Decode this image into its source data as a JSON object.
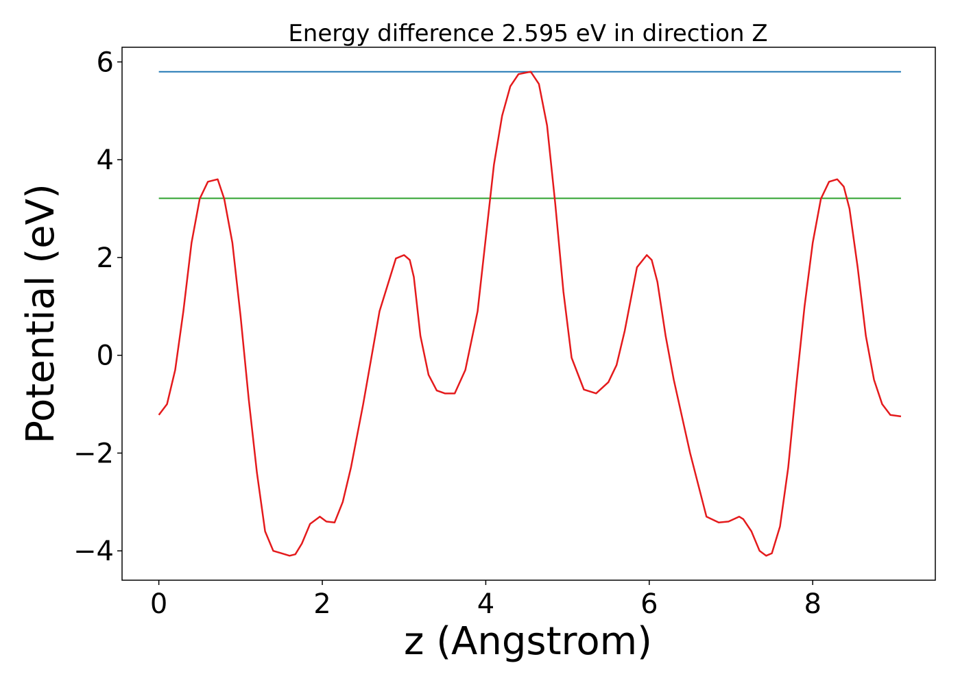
{
  "chart_data": {
    "type": "line",
    "title": "Energy difference 2.595 eV in direction Z",
    "xlabel": "z (Angstrom)",
    "ylabel": "Potential (eV)",
    "xlim": [
      -0.45,
      9.5
    ],
    "ylim": [
      -4.6,
      6.3
    ],
    "xticks": [
      0,
      2,
      4,
      6,
      8
    ],
    "yticks": [
      -4,
      -2,
      0,
      2,
      4,
      6
    ],
    "xtick_labels": [
      "0",
      "2",
      "4",
      "6",
      "8"
    ],
    "ytick_labels": [
      "−4",
      "−2",
      "0",
      "2",
      "4",
      "6"
    ],
    "grid": false,
    "legend": "none",
    "series": [
      {
        "color": "#1f77b4",
        "x": [
          0,
          9.08
        ],
        "y": [
          5.8,
          5.8
        ]
      },
      {
        "color": "#2ca02c",
        "x": [
          0,
          9.08
        ],
        "y": [
          3.21,
          3.21
        ]
      },
      {
        "color": "#e41a1c",
        "x": [
          0.0,
          0.1,
          0.2,
          0.3,
          0.4,
          0.5,
          0.6,
          0.72,
          0.8,
          0.9,
          1.0,
          1.1,
          1.2,
          1.3,
          1.4,
          1.5,
          1.6,
          1.67,
          1.75,
          1.85,
          1.97,
          2.05,
          2.15,
          2.25,
          2.35,
          2.5,
          2.7,
          2.9,
          3.0,
          3.07,
          3.12,
          3.2,
          3.3,
          3.4,
          3.5,
          3.62,
          3.75,
          3.9,
          4.0,
          4.1,
          4.2,
          4.3,
          4.4,
          4.55,
          4.65,
          4.75,
          4.85,
          4.95,
          5.05,
          5.2,
          5.35,
          5.5,
          5.6,
          5.7,
          5.85,
          5.97,
          6.03,
          6.1,
          6.2,
          6.3,
          6.5,
          6.7,
          6.85,
          6.97,
          7.1,
          7.15,
          7.25,
          7.35,
          7.43,
          7.5,
          7.6,
          7.7,
          7.8,
          7.9,
          8.0,
          8.1,
          8.2,
          8.3,
          8.38,
          8.45,
          8.55,
          8.65,
          8.75,
          8.85,
          8.95,
          9.08
        ],
        "y": [
          -1.22,
          -1.0,
          -0.3,
          0.9,
          2.3,
          3.2,
          3.55,
          3.6,
          3.2,
          2.3,
          0.8,
          -0.9,
          -2.4,
          -3.6,
          -4.0,
          -4.05,
          -4.1,
          -4.07,
          -3.85,
          -3.45,
          -3.3,
          -3.4,
          -3.42,
          -3.0,
          -2.3,
          -1.0,
          0.9,
          1.98,
          2.05,
          1.95,
          1.6,
          0.4,
          -0.4,
          -0.72,
          -0.78,
          -0.78,
          -0.3,
          0.9,
          2.4,
          3.9,
          4.9,
          5.5,
          5.75,
          5.8,
          5.55,
          4.7,
          3.1,
          1.3,
          -0.05,
          -0.7,
          -0.78,
          -0.55,
          -0.2,
          0.5,
          1.8,
          2.05,
          1.95,
          1.5,
          0.4,
          -0.5,
          -2.0,
          -3.3,
          -3.42,
          -3.4,
          -3.3,
          -3.35,
          -3.6,
          -4.0,
          -4.1,
          -4.05,
          -3.5,
          -2.3,
          -0.6,
          1.0,
          2.3,
          3.2,
          3.55,
          3.6,
          3.45,
          3.0,
          1.8,
          0.4,
          -0.5,
          -1.0,
          -1.22,
          -1.25
        ]
      }
    ]
  }
}
